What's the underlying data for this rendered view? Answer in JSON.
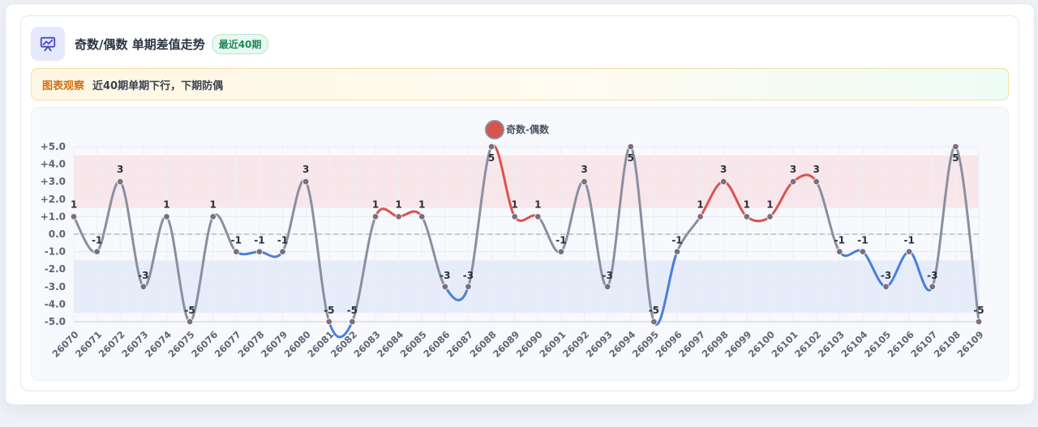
{
  "header": {
    "title": "奇数/偶数 单期差值走势",
    "badge": "最近40期",
    "icon": "chart-presentation-icon"
  },
  "observation": {
    "label": "图表观察",
    "text": "近40期单期下行，下期防偶"
  },
  "colors": {
    "up": "#d9534f",
    "down": "#4a7fd9",
    "neutral": "#8890a0",
    "band_up": "#f9e3e6",
    "band_down": "#e3eaf9"
  },
  "chart_data": {
    "type": "line",
    "legend": {
      "name": "奇数-偶数",
      "position": "top-center"
    },
    "ylim": [
      -5,
      5
    ],
    "y_ticks": [
      "+5.0",
      "+4.0",
      "+3.0",
      "+2.0",
      "+1.0",
      "0.0",
      "-1.0",
      "-2.0",
      "-3.0",
      "-4.0",
      "-5.0"
    ],
    "bands": [
      {
        "from": 1.5,
        "to": 4.5,
        "color": "up"
      },
      {
        "from": -4.5,
        "to": -1.5,
        "color": "down"
      }
    ],
    "categories": [
      "26070",
      "26071",
      "26072",
      "26073",
      "26074",
      "26075",
      "26076",
      "26077",
      "26078",
      "26079",
      "26080",
      "26081",
      "26082",
      "26083",
      "26084",
      "26085",
      "26086",
      "26087",
      "26088",
      "26089",
      "26090",
      "26091",
      "26092",
      "26093",
      "26094",
      "26095",
      "26096",
      "26097",
      "26098",
      "26099",
      "26100",
      "26101",
      "26102",
      "26103",
      "26104",
      "26105",
      "26106",
      "26107",
      "26108",
      "26109"
    ],
    "series": [
      {
        "name": "奇数-偶数",
        "values": [
          1,
          -1,
          3,
          -3,
          1,
          -5,
          1,
          -1,
          -1,
          -1,
          3,
          -5,
          -5,
          1,
          1,
          1,
          -3,
          -3,
          5,
          1,
          1,
          -1,
          3,
          -3,
          5,
          -5,
          -1,
          1,
          3,
          1,
          1,
          3,
          3,
          -1,
          -1,
          -3,
          -1,
          -3,
          5,
          -5
        ],
        "labels": [
          "1",
          "-1",
          "3",
          "-3",
          "1",
          "-5",
          "1",
          "-1",
          "-1",
          "-1",
          "3",
          "-5",
          "-5",
          "1",
          "1",
          "1",
          "-3",
          "-3",
          "5",
          "1",
          "1",
          "-1",
          "3",
          "-3",
          "5",
          "-5",
          "-1",
          "1",
          "3",
          "1",
          "1",
          "3",
          "3",
          "-1",
          "-1",
          "-3",
          "-1",
          "-3",
          "5",
          "-5"
        ]
      }
    ],
    "grid": true
  }
}
